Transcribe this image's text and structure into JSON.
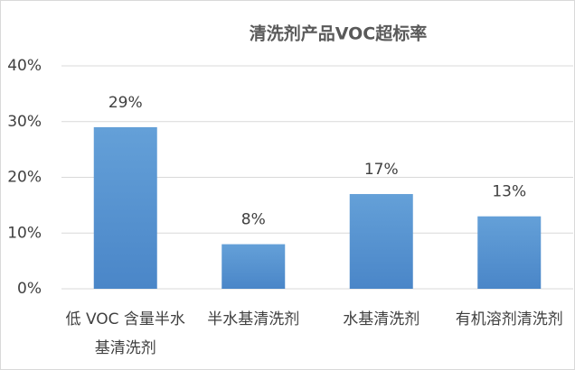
{
  "chart_data": {
    "type": "bar",
    "title": "清洗剂产品VOC超标率",
    "categories": [
      "低 VOC 含量半水基清洗剂",
      "半水基清洗剂",
      "水基清洗剂",
      "有机溶剂清洗剂"
    ],
    "values": [
      29,
      8,
      17,
      13
    ],
    "value_labels": [
      "29%",
      "8%",
      "17%",
      "13%"
    ],
    "color": "#5b9bd5",
    "ylim": [
      0,
      40
    ],
    "yticks": [
      {
        "value": 0,
        "label": "0%"
      },
      {
        "value": 10,
        "label": "10%"
      },
      {
        "value": 20,
        "label": "20%"
      },
      {
        "value": 30,
        "label": "30%"
      },
      {
        "value": 40,
        "label": "40%"
      }
    ],
    "grid": true
  }
}
